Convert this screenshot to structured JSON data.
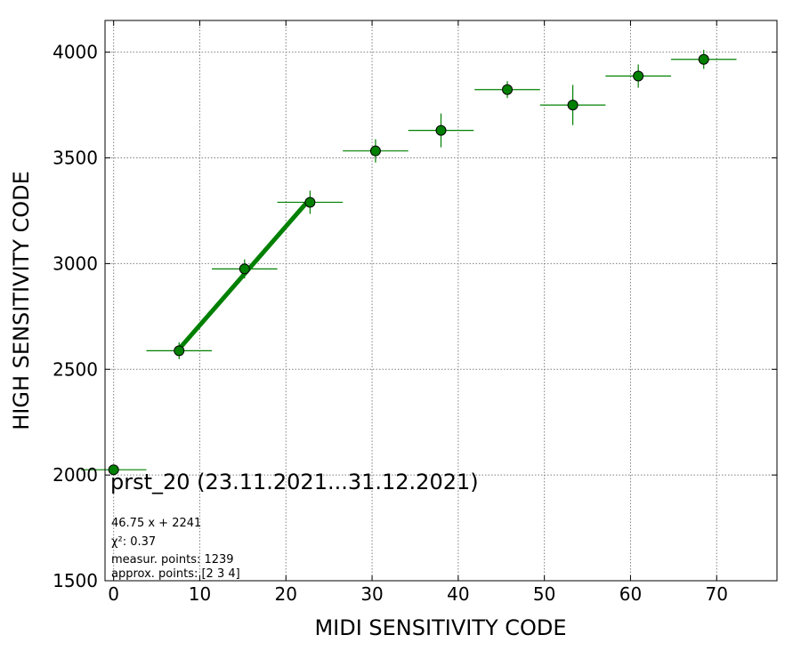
{
  "chart_data": {
    "type": "scatter",
    "title": "prst_20 (23.11.2021...31.12.2021)",
    "xlabel": "MIDI SENSITIVITY CODE",
    "ylabel": "HIGH SENSITIVITY CODE",
    "xlim": [
      -1,
      77
    ],
    "ylim": [
      1500,
      4150
    ],
    "xticks": [
      0,
      10,
      20,
      30,
      40,
      50,
      60,
      70
    ],
    "yticks": [
      1500,
      2000,
      2500,
      3000,
      3500,
      4000
    ],
    "grid": true,
    "series": [
      {
        "points": [
          {
            "x": 0.0,
            "y": 2025,
            "xerr": 3.8,
            "yerr": 0
          },
          {
            "x": 7.6,
            "y": 2588,
            "xerr": 3.8,
            "yerr": 40
          },
          {
            "x": 15.2,
            "y": 2975,
            "xerr": 3.8,
            "yerr": 45
          },
          {
            "x": 22.8,
            "y": 3290,
            "xerr": 3.8,
            "yerr": 55
          },
          {
            "x": 30.4,
            "y": 3533,
            "xerr": 3.8,
            "yerr": 55
          },
          {
            "x": 38.0,
            "y": 3630,
            "xerr": 3.8,
            "yerr": 80
          },
          {
            "x": 45.7,
            "y": 3823,
            "xerr": 3.8,
            "yerr": 40
          },
          {
            "x": 53.3,
            "y": 3750,
            "xerr": 3.8,
            "yerr": 95
          },
          {
            "x": 60.9,
            "y": 3887,
            "xerr": 3.8,
            "yerr": 55
          },
          {
            "x": 68.5,
            "y": 3966,
            "xerr": 3.8,
            "yerr": 45
          }
        ],
        "color": "#008000"
      }
    ],
    "fit_line": {
      "x": [
        7.6,
        22.8
      ],
      "slope": 46.75,
      "intercept": 2241,
      "color": "#008000"
    },
    "annotations": {
      "fit": "46.75 x + 2241",
      "chi2": "χ²: 0.37",
      "measur": "measur. points: 1239",
      "approx": "approx. points: [2 3 4]"
    }
  }
}
